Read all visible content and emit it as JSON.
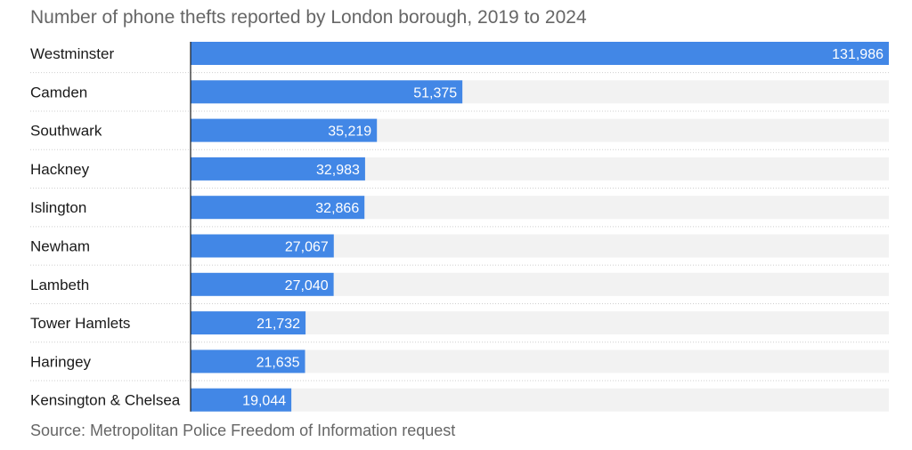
{
  "title": "Number of phone thefts reported by London borough, 2019 to 2024",
  "source": "Source: Metropolitan Police Freedom of Information request",
  "colors": {
    "bar": "#4287e6",
    "track": "#f2f2f2",
    "axis": "#1a1a1a",
    "divider": "#cfcfcf",
    "value_text": "#ffffff"
  },
  "chart_data": {
    "type": "bar",
    "orientation": "horizontal",
    "title": "Number of phone thefts reported by London borough, 2019 to 2024",
    "categories": [
      "Westminster",
      "Camden",
      "Southwark",
      "Hackney",
      "Islington",
      "Newham",
      "Lambeth",
      "Tower Hamlets",
      "Haringey",
      "Kensington & Chelsea"
    ],
    "values": [
      131986,
      51375,
      35219,
      32983,
      32866,
      27067,
      27040,
      21732,
      21635,
      19044
    ],
    "value_labels": [
      "131,986",
      "51,375",
      "35,219",
      "32,983",
      "32,866",
      "27,067",
      "27,040",
      "21,732",
      "21,635",
      "19,044"
    ],
    "xlim": [
      0,
      131986
    ],
    "grid": false,
    "data_labels": "inside-end"
  }
}
